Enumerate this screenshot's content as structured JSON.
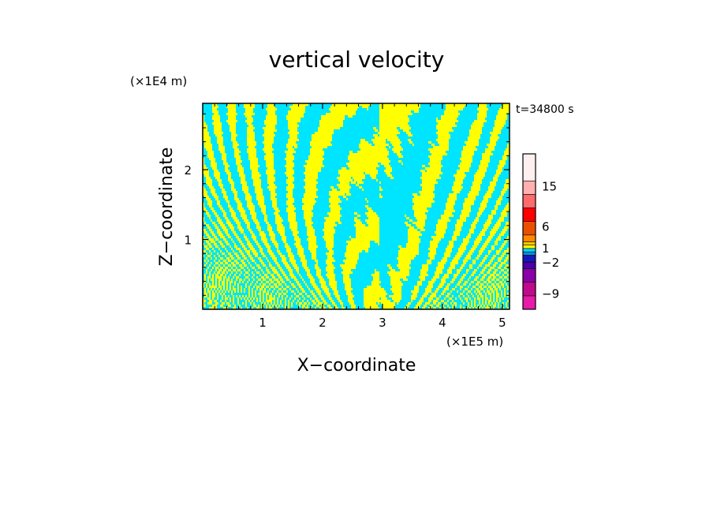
{
  "chart_data": {
    "type": "heatmap",
    "title": "vertical velocity",
    "xlabel": "X−coordinate",
    "ylabel": "Z−coordinate",
    "x_unit": "(×1E5 m)",
    "y_unit": "(×1E4 m)",
    "time_label": "t=34800 s",
    "xlim": [
      0,
      5.12
    ],
    "ylim": [
      0,
      2.95
    ],
    "x_ticks": [
      1,
      2,
      3,
      4,
      5
    ],
    "y_ticks": [
      1,
      2
    ],
    "x_tick_labels": [
      "1",
      "2",
      "3",
      "4",
      "5"
    ],
    "y_tick_labels": [
      "1",
      "2"
    ],
    "colorbar": {
      "tick_labels": [
        "15",
        "6",
        "1",
        "−2",
        "−9"
      ],
      "colors": [
        "#e81aa8",
        "#c00a8c",
        "#8a00a8",
        "#4a00a8",
        "#1818b8",
        "#0090e8",
        "#00d8ff",
        "#ffff00",
        "#ffc800",
        "#ff8800",
        "#e85000",
        "#ff0000",
        "#ff6a6a",
        "#ffb0b0",
        "#fff0f0"
      ],
      "bands": [
        {
          "color": "#e81aa8",
          "weight": 2
        },
        {
          "color": "#c00a8c",
          "weight": 2
        },
        {
          "color": "#8a00a8",
          "weight": 2
        },
        {
          "color": "#4a00a8",
          "weight": 1
        },
        {
          "color": "#1818b8",
          "weight": 1
        },
        {
          "color": "#0090e8",
          "weight": 0.5
        },
        {
          "color": "#00d8ff",
          "weight": 0.5
        },
        {
          "color": "#ffff00",
          "weight": 0.5
        },
        {
          "color": "#ffc800",
          "weight": 0.5
        },
        {
          "color": "#ff8800",
          "weight": 1
        },
        {
          "color": "#e85000",
          "weight": 2
        },
        {
          "color": "#ff0000",
          "weight": 2
        },
        {
          "color": "#ff6a6a",
          "weight": 2
        },
        {
          "color": "#ffb0b0",
          "weight": 2
        },
        {
          "color": "#fff0f0",
          "weight": 4
        }
      ],
      "tick_values": [
        15,
        6,
        1,
        -2,
        -9
      ],
      "tick_positions_fraction": [
        0.79,
        0.53,
        0.39,
        0.3,
        0.1
      ]
    },
    "field_colors": {
      "positive": "#ffff00",
      "negative": "#00e5ff"
    }
  }
}
